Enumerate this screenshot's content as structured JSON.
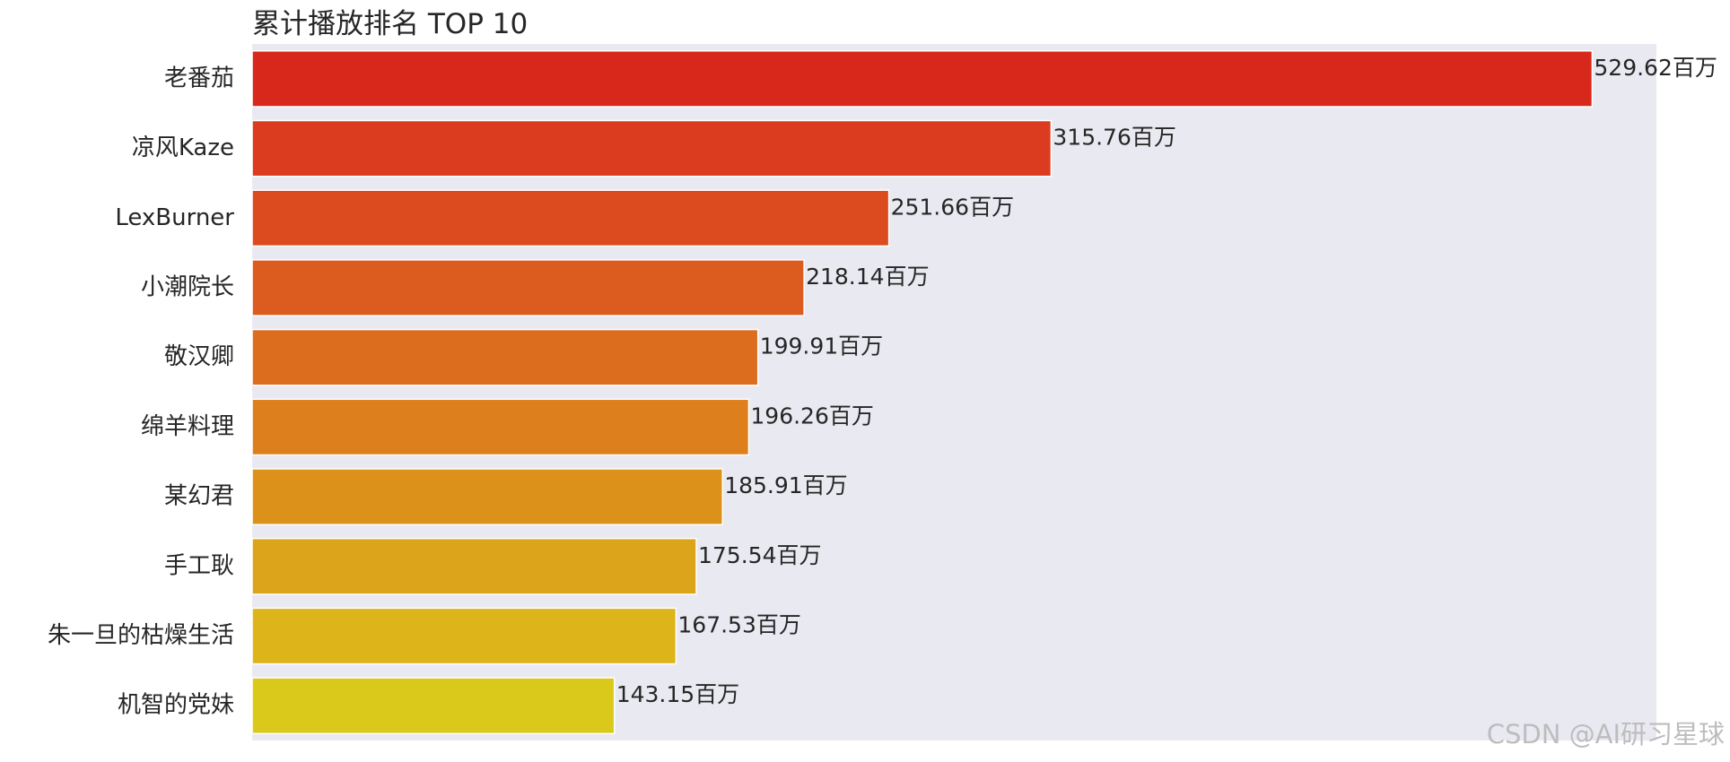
{
  "chart_data": {
    "type": "bar",
    "orientation": "horizontal",
    "title": "累计播放排名 TOP 10",
    "xlabel": "",
    "ylabel": "",
    "unit_suffix": "百万",
    "xlim": [
      0,
      555
    ],
    "grid": false,
    "categories": [
      "老番茄",
      "凉风Kaze",
      "LexBurner",
      "小潮院长",
      "敬汉卿",
      "绵羊料理",
      "某幻君",
      "手工耿",
      "朱一旦的枯燥生活",
      "机智的党妹"
    ],
    "values": [
      529.62,
      315.76,
      251.66,
      218.14,
      199.91,
      196.26,
      185.91,
      175.54,
      167.53,
      143.15
    ],
    "value_labels": [
      "529.62百万",
      "315.76百万",
      "251.66百万",
      "218.14百万",
      "199.91百万",
      "196.26百万",
      "185.91百万",
      "175.54百万",
      "167.53百万",
      "143.15百万"
    ],
    "colors": [
      "#d8281c",
      "#db3b1f",
      "#dc4a1f",
      "#dc5b1f",
      "#dc6d1e",
      "#dd7f1c",
      "#dc911b",
      "#dca41b",
      "#ddb51a",
      "#dac91b"
    ],
    "plot_background": "#e9e9f1"
  },
  "watermark": "CSDN @AI研习星球"
}
